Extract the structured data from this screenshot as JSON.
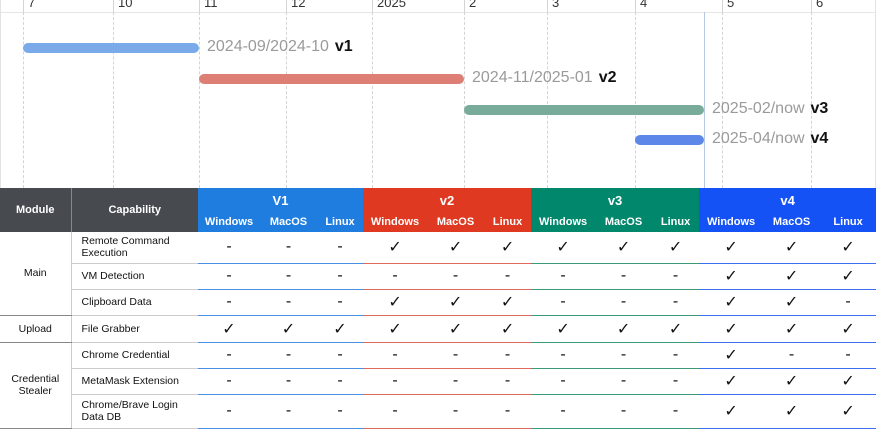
{
  "timeline": {
    "ticks": [
      "7",
      "10",
      "11",
      "12",
      "2025",
      "2",
      "3",
      "4",
      "5",
      "6"
    ],
    "bars": [
      {
        "label": "2024-09/2024-10",
        "name": "v1",
        "color": "#7aaaea"
      },
      {
        "label": "2024-11/2025-01",
        "name": "v2",
        "color": "#dd7f74"
      },
      {
        "label": "2025-02/now",
        "name": "v3",
        "color": "#78ab99"
      },
      {
        "label": "2025-04/now",
        "name": "v4",
        "color": "#5d88ea"
      }
    ]
  },
  "table": {
    "module_header": "Module",
    "capability_header": "Capability",
    "versions": [
      {
        "name": "V1",
        "color": "#1e7ddf",
        "sub": [
          "Windows",
          "MacOS",
          "Linux"
        ]
      },
      {
        "name": "v2",
        "color": "#df3a21",
        "sub": [
          "Windows",
          "MacOS",
          "Linux"
        ]
      },
      {
        "name": "v3",
        "color": "#00876c",
        "sub": [
          "Windows",
          "MacOS",
          "Linux"
        ]
      },
      {
        "name": "v4",
        "color": "#1452f6",
        "sub": [
          "Windows",
          "MacOS",
          "Linux"
        ]
      }
    ],
    "modules": [
      {
        "name": "Main",
        "rows": [
          {
            "cap": "Remote Command Execution",
            "cells": [
              "-",
              "-",
              "-",
              "✓",
              "✓",
              "✓",
              "✓",
              "✓",
              "✓",
              "✓",
              "✓",
              "✓"
            ]
          },
          {
            "cap": "VM Detection",
            "cells": [
              "-",
              "-",
              "-",
              "-",
              "-",
              "-",
              "-",
              "-",
              "-",
              "✓",
              "✓",
              "✓"
            ]
          },
          {
            "cap": "Clipboard Data",
            "cells": [
              "-",
              "-",
              "-",
              "✓",
              "✓",
              "✓",
              "-",
              "-",
              "-",
              "✓",
              "✓",
              "-"
            ]
          }
        ]
      },
      {
        "name": "Upload",
        "rows": [
          {
            "cap": "File Grabber",
            "cells": [
              "✓",
              "✓",
              "✓",
              "✓",
              "✓",
              "✓",
              "✓",
              "✓",
              "✓",
              "✓",
              "✓",
              "✓"
            ]
          }
        ]
      },
      {
        "name": "Credential Stealer",
        "rows": [
          {
            "cap": "Chrome Credential",
            "cells": [
              "-",
              "-",
              "-",
              "-",
              "-",
              "-",
              "-",
              "-",
              "-",
              "✓",
              "-",
              "-"
            ]
          },
          {
            "cap": "MetaMask Extension",
            "cells": [
              "-",
              "-",
              "-",
              "-",
              "-",
              "-",
              "-",
              "-",
              "-",
              "✓",
              "✓",
              "✓"
            ]
          },
          {
            "cap": "Chrome/Brave Login Data DB",
            "cells": [
              "-",
              "-",
              "-",
              "-",
              "-",
              "-",
              "-",
              "-",
              "-",
              "✓",
              "✓",
              "✓"
            ]
          }
        ]
      }
    ]
  }
}
